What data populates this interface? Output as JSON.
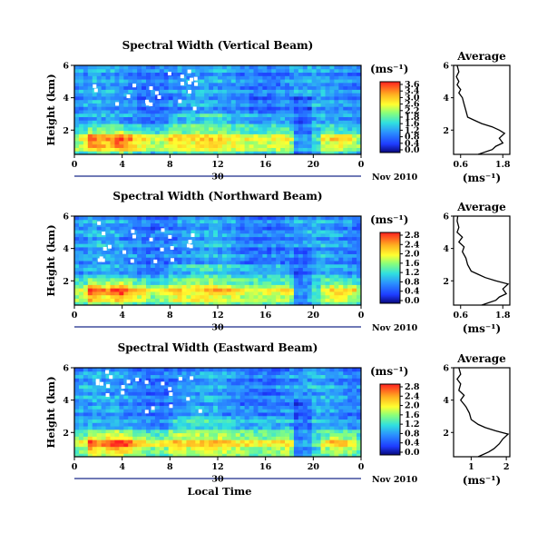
{
  "chart_data": [
    {
      "type": "heatmap",
      "title": "Spectral Width (Vertical Beam)",
      "ylabel": "Height (km)",
      "colorbar_label": "(ms⁻¹)",
      "colorbar_ticks": [
        "3.6",
        "3.4",
        "3.0",
        "2.6",
        "2.2",
        "1.8",
        "1.6",
        "1.2",
        "0.8",
        "0.4",
        "0.0"
      ],
      "x_ticks": [
        "0",
        "4",
        "8",
        "12",
        "16",
        "20",
        "0"
      ],
      "x_day_label": "30",
      "date_label": "Nov 2010",
      "y_ticks": [
        "6",
        "4",
        "2"
      ],
      "xlim": [
        0,
        24
      ],
      "ylim": [
        0.5,
        6
      ],
      "average_title": "Average",
      "average_xlabel": "(ms⁻¹)",
      "average_x_ticks": [
        "0.6",
        "1.8"
      ],
      "average_xlim": [
        0.4,
        2.0
      ],
      "average_y_ticks": [
        "6",
        "4",
        "2"
      ],
      "average_profile": [
        [
          0.5,
          1.1
        ],
        [
          0.8,
          1.5
        ],
        [
          1.0,
          1.6
        ],
        [
          1.2,
          1.8
        ],
        [
          1.5,
          1.7
        ],
        [
          1.8,
          1.85
        ],
        [
          2.0,
          1.7
        ],
        [
          2.2,
          1.5
        ],
        [
          2.4,
          1.2
        ],
        [
          2.6,
          1.0
        ],
        [
          2.8,
          0.8
        ],
        [
          3.2,
          0.75
        ],
        [
          3.6,
          0.7
        ],
        [
          4.0,
          0.65
        ],
        [
          4.3,
          0.55
        ],
        [
          4.5,
          0.6
        ],
        [
          4.8,
          0.5
        ],
        [
          5.0,
          0.55
        ],
        [
          5.3,
          0.48
        ],
        [
          5.6,
          0.55
        ],
        [
          6.0,
          0.5
        ]
      ]
    },
    {
      "type": "heatmap",
      "title": "Spectral Width (Northward Beam)",
      "ylabel": "Height (km)",
      "colorbar_label": "(ms⁻¹)",
      "colorbar_ticks": [
        "2.8",
        "2.4",
        "2.0",
        "1.6",
        "1.2",
        "0.8",
        "0.4",
        "0.0"
      ],
      "x_ticks": [
        "0",
        "4",
        "8",
        "12",
        "16",
        "20",
        "0"
      ],
      "x_day_label": "30",
      "date_label": "Nov 2010",
      "y_ticks": [
        "6",
        "4",
        "2"
      ],
      "xlim": [
        0,
        24
      ],
      "ylim": [
        0.5,
        6
      ],
      "average_title": "Average",
      "average_xlabel": "(ms⁻¹)",
      "average_x_ticks": [
        "0.6",
        "1.8"
      ],
      "average_xlim": [
        0.4,
        2.0
      ],
      "average_y_ticks": [
        "6",
        "4",
        "2"
      ],
      "average_profile": [
        [
          0.5,
          1.2
        ],
        [
          0.8,
          1.6
        ],
        [
          1.0,
          1.7
        ],
        [
          1.2,
          1.9
        ],
        [
          1.5,
          1.8
        ],
        [
          1.8,
          1.95
        ],
        [
          2.0,
          1.6
        ],
        [
          2.2,
          1.3
        ],
        [
          2.4,
          1.1
        ],
        [
          2.6,
          0.9
        ],
        [
          3.0,
          0.8
        ],
        [
          3.4,
          0.75
        ],
        [
          3.8,
          0.65
        ],
        [
          4.1,
          0.7
        ],
        [
          4.4,
          0.55
        ],
        [
          4.7,
          0.65
        ],
        [
          5.0,
          0.5
        ],
        [
          5.3,
          0.55
        ],
        [
          5.7,
          0.5
        ],
        [
          6.0,
          0.52
        ]
      ]
    },
    {
      "type": "heatmap",
      "title": "Spectral Width (Eastward Beam)",
      "ylabel": "Height (km)",
      "xlabel": "Local Time",
      "colorbar_label": "(ms⁻¹)",
      "colorbar_ticks": [
        "2.8",
        "2.4",
        "2.0",
        "1.6",
        "1.2",
        "0.8",
        "0.4",
        "0.0"
      ],
      "x_ticks": [
        "0",
        "4",
        "8",
        "12",
        "16",
        "20",
        "0"
      ],
      "x_day_label": "30",
      "date_label": "Nov 2010",
      "y_ticks": [
        "6",
        "4",
        "2"
      ],
      "xlim": [
        0,
        24
      ],
      "ylim": [
        0.5,
        6
      ],
      "average_title": "Average",
      "average_xlabel": "(ms⁻¹)",
      "average_x_ticks": [
        "1",
        "2"
      ],
      "average_xlim": [
        0.5,
        2.1
      ],
      "average_y_ticks": [
        "6",
        "4",
        "2"
      ],
      "average_profile": [
        [
          0.5,
          1.2
        ],
        [
          0.8,
          1.5
        ],
        [
          1.0,
          1.65
        ],
        [
          1.3,
          1.8
        ],
        [
          1.6,
          1.9
        ],
        [
          1.9,
          2.05
        ],
        [
          2.1,
          1.7
        ],
        [
          2.3,
          1.4
        ],
        [
          2.5,
          1.2
        ],
        [
          2.8,
          1.0
        ],
        [
          3.2,
          0.95
        ],
        [
          3.6,
          0.85
        ],
        [
          4.0,
          0.7
        ],
        [
          4.3,
          0.8
        ],
        [
          4.6,
          0.65
        ],
        [
          5.0,
          0.7
        ],
        [
          5.3,
          0.6
        ],
        [
          5.6,
          0.7
        ],
        [
          6.0,
          0.65
        ]
      ]
    }
  ]
}
